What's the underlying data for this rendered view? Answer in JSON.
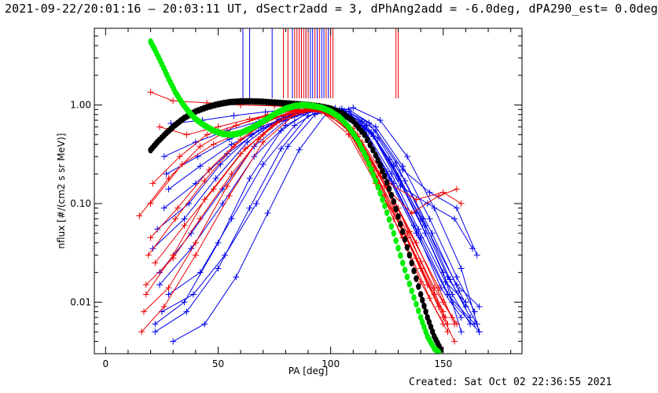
{
  "header": {
    "title": "2021-09-22/20:01:16 — 20:03:11 UT, dSectr2add = 3, dPhAng2add = -6.0deg, dPA290_est=  0.0deg"
  },
  "footer": {
    "created": "Created: Sat Oct 02 22:36:55 2021"
  },
  "chart_data": {
    "type": "line",
    "title": "",
    "xlabel": "PA [deg]",
    "ylabel": "nflux [#/(cm2 s sr MeV)]",
    "xlim": [
      -5,
      185
    ],
    "ylim": [
      0.003,
      6.0
    ],
    "yscale": "log",
    "grid": false,
    "legend": "none",
    "x_ticks": [
      {
        "value": 0,
        "label": "0"
      },
      {
        "value": 50,
        "label": "50"
      },
      {
        "value": 100,
        "label": "100"
      },
      {
        "value": 150,
        "label": "150"
      }
    ],
    "y_ticks": [
      {
        "value": 0.01,
        "label": "0.01"
      },
      {
        "value": 0.1,
        "label": "0.10"
      },
      {
        "value": 1.0,
        "label": "1.00"
      }
    ],
    "colors": {
      "red": "#ee0000",
      "blue": "#0000ee",
      "green": "#00ee00",
      "black": "#000000"
    },
    "series": [
      {
        "color": "green",
        "marker": "dot",
        "x": [
          20,
          22,
          25,
          28,
          31,
          34,
          37,
          40,
          44,
          48,
          52,
          56,
          60,
          64,
          68,
          72,
          76,
          80,
          84,
          88,
          92,
          96,
          100,
          104,
          108,
          112,
          116,
          120,
          124,
          128,
          132,
          136,
          140,
          143,
          146,
          148
        ],
        "y": [
          4.4,
          3.6,
          2.6,
          1.85,
          1.35,
          1.05,
          0.85,
          0.72,
          0.62,
          0.55,
          0.51,
          0.5,
          0.52,
          0.57,
          0.64,
          0.73,
          0.83,
          0.92,
          0.98,
          1.0,
          0.98,
          0.94,
          0.86,
          0.75,
          0.6,
          0.44,
          0.29,
          0.17,
          0.095,
          0.05,
          0.025,
          0.013,
          0.007,
          0.0045,
          0.0034,
          0.0031
        ]
      },
      {
        "color": "black",
        "marker": "dot",
        "x": [
          20,
          23,
          27,
          31,
          35,
          40,
          45,
          50,
          55,
          60,
          65,
          70,
          75,
          80,
          85,
          90,
          95,
          100,
          105,
          110,
          115,
          120,
          124,
          128,
          132,
          136,
          140,
          143,
          146,
          149
        ],
        "y": [
          0.35,
          0.42,
          0.52,
          0.63,
          0.74,
          0.86,
          0.95,
          1.02,
          1.07,
          1.09,
          1.09,
          1.08,
          1.06,
          1.04,
          1.02,
          1.0,
          0.97,
          0.92,
          0.83,
          0.69,
          0.5,
          0.31,
          0.19,
          0.105,
          0.052,
          0.025,
          0.012,
          0.007,
          0.0045,
          0.0033
        ]
      }
    ],
    "red_curves": [
      {
        "x": [
          20,
          30,
          45,
          60,
          75,
          90,
          100,
          112,
          124,
          138,
          150,
          155
        ],
        "y": [
          1.35,
          1.1,
          1.05,
          1.0,
          0.98,
          0.92,
          0.82,
          0.48,
          0.12,
          0.028,
          0.007,
          0.004
        ]
      },
      {
        "x": [
          15,
          28,
          42,
          58,
          72,
          85,
          96,
          108,
          120,
          134,
          146,
          152
        ],
        "y": [
          0.075,
          0.18,
          0.38,
          0.62,
          0.8,
          0.9,
          0.85,
          0.5,
          0.16,
          0.045,
          0.012,
          0.006
        ]
      },
      {
        "x": [
          18,
          30,
          44,
          60,
          74,
          86,
          98,
          110,
          122,
          135,
          148,
          155
        ],
        "y": [
          0.012,
          0.03,
          0.11,
          0.32,
          0.62,
          0.85,
          0.88,
          0.58,
          0.2,
          0.052,
          0.014,
          0.006
        ]
      },
      {
        "x": [
          16,
          26,
          40,
          55,
          70,
          84,
          96,
          108,
          120,
          132,
          144,
          152
        ],
        "y": [
          0.005,
          0.009,
          0.03,
          0.12,
          0.42,
          0.8,
          0.9,
          0.55,
          0.17,
          0.045,
          0.011,
          0.005
        ]
      },
      {
        "x": [
          20,
          32,
          46,
          60,
          72,
          84,
          94,
          106,
          118,
          130,
          140,
          150
        ],
        "y": [
          0.045,
          0.09,
          0.22,
          0.45,
          0.7,
          0.88,
          0.9,
          0.62,
          0.26,
          0.09,
          0.026,
          0.008
        ]
      },
      {
        "x": [
          22,
          35,
          48,
          62,
          76,
          88,
          100,
          112,
          125,
          138,
          150,
          156
        ],
        "y": [
          0.025,
          0.06,
          0.14,
          0.36,
          0.66,
          0.86,
          0.85,
          0.48,
          0.15,
          0.04,
          0.01,
          0.006
        ]
      },
      {
        "x": [
          18,
          30,
          42,
          56,
          70,
          82,
          92,
          104,
          116,
          128,
          140,
          148
        ],
        "y": [
          0.015,
          0.028,
          0.07,
          0.2,
          0.5,
          0.82,
          0.92,
          0.7,
          0.3,
          0.09,
          0.022,
          0.009
        ]
      },
      {
        "x": [
          24,
          36,
          50,
          64,
          78,
          90,
          102,
          114,
          126,
          138,
          150,
          158
        ],
        "y": [
          0.6,
          0.5,
          0.6,
          0.72,
          0.85,
          0.9,
          0.78,
          0.42,
          0.16,
          0.11,
          0.13,
          0.1
        ]
      },
      {
        "x": [
          20,
          34,
          48,
          62,
          76,
          88,
          100,
          112,
          124,
          136,
          148,
          156
        ],
        "y": [
          0.1,
          0.25,
          0.4,
          0.55,
          0.75,
          0.88,
          0.82,
          0.5,
          0.15,
          0.08,
          0.12,
          0.14
        ]
      },
      {
        "x": [
          17,
          28,
          40,
          54,
          68,
          80,
          92,
          104,
          116,
          128,
          140,
          150
        ],
        "y": [
          0.008,
          0.014,
          0.04,
          0.15,
          0.45,
          0.8,
          0.95,
          0.72,
          0.28,
          0.07,
          0.016,
          0.006
        ]
      },
      {
        "x": [
          21,
          33,
          45,
          58,
          72,
          86,
          98,
          110,
          122,
          134,
          146,
          154
        ],
        "y": [
          0.16,
          0.3,
          0.5,
          0.62,
          0.78,
          0.9,
          0.88,
          0.54,
          0.19,
          0.05,
          0.014,
          0.007
        ]
      },
      {
        "x": [
          19,
          31,
          44,
          57,
          70,
          83,
          95,
          107,
          119,
          131,
          143,
          151
        ],
        "y": [
          0.03,
          0.07,
          0.17,
          0.38,
          0.65,
          0.86,
          0.92,
          0.64,
          0.22,
          0.06,
          0.015,
          0.007
        ]
      }
    ],
    "blue_curves": [
      {
        "x": [
          22,
          35,
          50,
          64,
          78,
          90,
          102,
          114,
          126,
          138,
          152,
          164
        ],
        "y": [
          0.006,
          0.01,
          0.04,
          0.18,
          0.55,
          0.85,
          0.88,
          0.55,
          0.18,
          0.05,
          0.012,
          0.006
        ]
      },
      {
        "x": [
          24,
          38,
          52,
          66,
          80,
          92,
          104,
          116,
          128,
          140,
          154,
          166
        ],
        "y": [
          0.02,
          0.05,
          0.14,
          0.38,
          0.7,
          0.9,
          0.86,
          0.5,
          0.16,
          0.045,
          0.01,
          0.005
        ]
      },
      {
        "x": [
          26,
          40,
          54,
          68,
          82,
          94,
          106,
          118,
          130,
          142,
          156,
          166
        ],
        "y": [
          0.3,
          0.42,
          0.55,
          0.68,
          0.82,
          0.92,
          0.84,
          0.52,
          0.19,
          0.06,
          0.015,
          0.009
        ]
      },
      {
        "x": [
          28,
          42,
          56,
          70,
          84,
          96,
          108,
          120,
          132,
          144,
          156,
          164
        ],
        "y": [
          0.012,
          0.02,
          0.07,
          0.25,
          0.62,
          0.92,
          0.9,
          0.6,
          0.24,
          0.07,
          0.018,
          0.008
        ]
      },
      {
        "x": [
          23,
          37,
          51,
          65,
          79,
          91,
          103,
          115,
          127,
          139,
          151,
          160
        ],
        "y": [
          0.055,
          0.1,
          0.25,
          0.5,
          0.76,
          0.9,
          0.86,
          0.56,
          0.2,
          0.055,
          0.016,
          0.01
        ]
      },
      {
        "x": [
          25,
          39,
          53,
          67,
          81,
          93,
          105,
          117,
          129,
          141,
          153,
          162
        ],
        "y": [
          0.008,
          0.012,
          0.03,
          0.1,
          0.38,
          0.8,
          0.92,
          0.66,
          0.26,
          0.07,
          0.017,
          0.007
        ]
      },
      {
        "x": [
          27,
          41,
          55,
          69,
          83,
          95,
          107,
          119,
          131,
          143,
          155,
          163
        ],
        "y": [
          0.2,
          0.3,
          0.45,
          0.6,
          0.78,
          0.9,
          0.82,
          0.48,
          0.15,
          0.1,
          0.07,
          0.035
        ]
      },
      {
        "x": [
          30,
          44,
          58,
          72,
          86,
          98,
          110,
          122,
          134,
          146,
          158,
          166
        ],
        "y": [
          0.004,
          0.006,
          0.018,
          0.08,
          0.35,
          0.82,
          0.94,
          0.7,
          0.3,
          0.09,
          0.022,
          0.005
        ]
      },
      {
        "x": [
          21,
          35,
          49,
          63,
          77,
          89,
          101,
          113,
          125,
          137,
          149,
          158
        ],
        "y": [
          0.035,
          0.07,
          0.18,
          0.42,
          0.72,
          0.9,
          0.88,
          0.58,
          0.21,
          0.06,
          0.014,
          0.007
        ]
      },
      {
        "x": [
          29,
          43,
          57,
          71,
          85,
          97,
          109,
          121,
          133,
          145,
          157,
          165
        ],
        "y": [
          0.65,
          0.7,
          0.78,
          0.85,
          0.92,
          0.95,
          0.8,
          0.46,
          0.17,
          0.05,
          0.013,
          0.006
        ]
      },
      {
        "x": [
          26,
          40,
          54,
          68,
          82,
          94,
          106,
          118,
          130,
          142,
          154,
          162
        ],
        "y": [
          0.09,
          0.16,
          0.32,
          0.55,
          0.78,
          0.91,
          0.85,
          0.53,
          0.18,
          0.05,
          0.012,
          0.006
        ]
      },
      {
        "x": [
          24,
          38,
          52,
          66,
          80,
          92,
          104,
          116,
          128,
          140,
          152,
          160
        ],
        "y": [
          0.015,
          0.035,
          0.1,
          0.3,
          0.62,
          0.88,
          0.9,
          0.62,
          0.24,
          0.07,
          0.018,
          0.009
        ]
      },
      {
        "x": [
          28,
          42,
          56,
          70,
          84,
          96,
          108,
          120,
          132,
          144,
          156,
          165
        ],
        "y": [
          0.14,
          0.24,
          0.4,
          0.58,
          0.76,
          0.9,
          0.86,
          0.55,
          0.22,
          0.13,
          0.09,
          0.03
        ]
      },
      {
        "x": [
          22,
          36,
          50,
          64,
          78,
          90,
          102,
          114,
          126,
          138,
          150,
          158
        ],
        "y": [
          0.005,
          0.008,
          0.022,
          0.09,
          0.36,
          0.78,
          0.93,
          0.68,
          0.28,
          0.08,
          0.02,
          0.005
        ]
      }
    ],
    "red_tick_x": [
      79,
      81,
      84,
      85,
      86,
      87,
      88,
      89,
      90,
      93,
      95,
      98,
      100,
      101,
      129,
      130
    ],
    "blue_tick_x": [
      61,
      64,
      74,
      83,
      87,
      89,
      90,
      91,
      92,
      94,
      96,
      97,
      99
    ]
  }
}
